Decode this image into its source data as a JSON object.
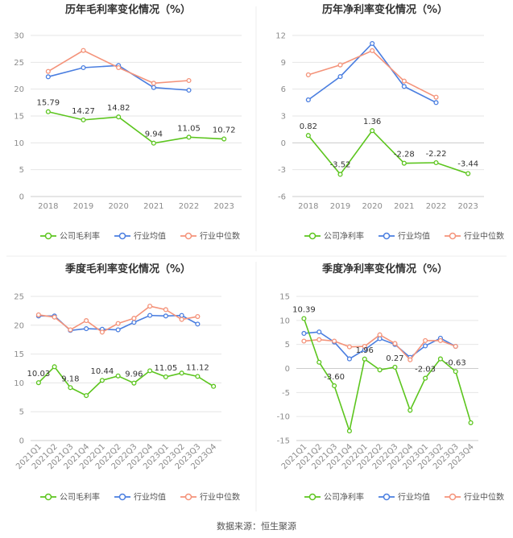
{
  "source_text": "数据来源：恒生聚源",
  "colors": {
    "company": "#5cc51e",
    "industry_avg": "#4a7ee0",
    "industry_median": "#f4937a",
    "axis_text": "#8c8c8c",
    "grid": "#e6e6e6",
    "title": "#333333"
  },
  "chart_data": [
    {
      "type": "line",
      "title": "历年毛利率变化情况（%）",
      "categories": [
        "2018",
        "2019",
        "2020",
        "2021",
        "2022",
        "2023"
      ],
      "ylim": [
        0,
        30
      ],
      "yticks": [
        0,
        5,
        10,
        15,
        20,
        25,
        30
      ],
      "series": [
        {
          "name": "公司毛利率",
          "key": "company",
          "values": [
            15.79,
            14.27,
            14.82,
            9.94,
            11.05,
            10.72
          ],
          "labels": [
            "15.79",
            "14.27",
            "14.82",
            "9.94",
            "11.05",
            "10.72"
          ]
        },
        {
          "name": "行业均值",
          "key": "industry_avg",
          "values": [
            22.3,
            24.0,
            24.4,
            20.3,
            19.8,
            null
          ]
        },
        {
          "name": "行业中位数",
          "key": "industry_median",
          "values": [
            23.3,
            27.2,
            24.0,
            21.1,
            21.6,
            null
          ]
        }
      ]
    },
    {
      "type": "line",
      "title": "历年净利率变化情况（%）",
      "categories": [
        "2018",
        "2019",
        "2020",
        "2021",
        "2022",
        "2023"
      ],
      "ylim": [
        -6,
        12
      ],
      "yticks": [
        -6,
        -3,
        0,
        3,
        6,
        9,
        12
      ],
      "series": [
        {
          "name": "公司净利率",
          "key": "company",
          "values": [
            0.82,
            -3.52,
            1.36,
            -2.28,
            -2.22,
            -3.44
          ],
          "labels": [
            "0.82",
            "-3.52",
            "1.36",
            "-2.28",
            "-2.22",
            "-3.44"
          ]
        },
        {
          "name": "行业均值",
          "key": "industry_avg",
          "values": [
            4.8,
            7.4,
            11.1,
            6.3,
            4.5,
            null
          ]
        },
        {
          "name": "行业中位数",
          "key": "industry_median",
          "values": [
            7.6,
            8.7,
            10.3,
            6.9,
            5.1,
            null
          ]
        }
      ]
    },
    {
      "type": "line",
      "title": "季度毛利率变化情况（%）",
      "categories": [
        "2021Q1",
        "2021Q2",
        "2021Q3",
        "2021Q4",
        "2022Q1",
        "2022Q2",
        "2022Q3",
        "2022Q4",
        "2023Q1",
        "2023Q2",
        "2023Q3",
        "2023Q4"
      ],
      "ylim": [
        0,
        25
      ],
      "yticks": [
        0,
        5,
        10,
        15,
        20,
        25
      ],
      "series": [
        {
          "name": "公司毛利率",
          "key": "company",
          "values": [
            10.03,
            12.8,
            9.18,
            7.8,
            10.44,
            11.2,
            9.96,
            12.1,
            11.05,
            11.7,
            11.12,
            9.4
          ],
          "labels": [
            "10.03",
            "",
            "9.18",
            "",
            "10.44",
            "",
            "9.96",
            "",
            "11.05",
            "",
            "11.12",
            ""
          ]
        },
        {
          "name": "行业均值",
          "key": "industry_avg",
          "values": [
            21.6,
            21.6,
            19.1,
            19.4,
            19.3,
            19.2,
            20.5,
            21.7,
            21.6,
            21.7,
            20.2,
            null
          ]
        },
        {
          "name": "行业中位数",
          "key": "industry_median",
          "values": [
            21.8,
            21.4,
            19.2,
            20.8,
            18.8,
            20.3,
            21.2,
            23.3,
            22.7,
            21.0,
            21.5,
            null
          ]
        }
      ]
    },
    {
      "type": "line",
      "title": "季度净利率变化情况（%）",
      "categories": [
        "2021Q1",
        "2021Q2",
        "2021Q3",
        "2021Q4",
        "2022Q1",
        "2022Q2",
        "2022Q3",
        "2022Q4",
        "2023Q1",
        "2023Q2",
        "2023Q3",
        "2023Q4"
      ],
      "ylim": [
        -15,
        15
      ],
      "yticks": [
        -15,
        -10,
        -5,
        0,
        5,
        10,
        15
      ],
      "series": [
        {
          "name": "公司净利率",
          "key": "company",
          "values": [
            10.39,
            1.3,
            -3.6,
            -13.0,
            1.96,
            -0.3,
            0.27,
            -8.7,
            -2.03,
            2.0,
            -0.63,
            -11.3
          ],
          "labels": [
            "10.39",
            "",
            "-3.60",
            "",
            "1.96",
            "",
            "0.27",
            "",
            "-2.03",
            "",
            "-0.63",
            ""
          ]
        },
        {
          "name": "行业均值",
          "key": "industry_avg",
          "values": [
            7.3,
            7.6,
            5.5,
            2.0,
            3.9,
            6.2,
            5.0,
            2.3,
            4.7,
            6.3,
            4.6,
            null
          ]
        },
        {
          "name": "行业中位数",
          "key": "industry_median",
          "values": [
            5.7,
            6.0,
            5.7,
            4.5,
            4.6,
            7.0,
            5.2,
            1.8,
            5.8,
            5.8,
            4.6,
            null
          ]
        }
      ]
    }
  ]
}
